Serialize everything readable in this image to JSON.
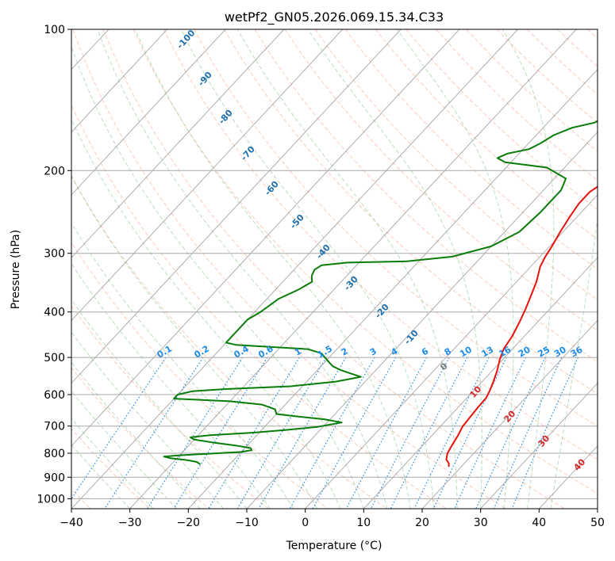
{
  "chart_data": {
    "type": "line",
    "title": "wetPf2_GN05.2026.069.15.34.C33",
    "xlabel": "Temperature (°C)",
    "ylabel": "Pressure (hPa)",
    "xlim": [
      -40,
      50
    ],
    "ylim": [
      1050,
      100
    ],
    "y_scale": "log",
    "grid": true,
    "x_ticks": [
      "−40",
      "−30",
      "−20",
      "−10",
      "0",
      "10",
      "20",
      "30",
      "40",
      "50"
    ],
    "x_tick_values": [
      -40,
      -30,
      -20,
      -10,
      0,
      10,
      20,
      30,
      40,
      50
    ],
    "y_ticks": [
      "100",
      "200",
      "300",
      "400",
      "500",
      "600",
      "700",
      "800",
      "900",
      "1000"
    ],
    "y_tick_values": [
      100,
      200,
      300,
      400,
      500,
      600,
      700,
      800,
      900,
      1000
    ],
    "series": [
      {
        "color": "#e8120c",
        "points": [
          [
            17.9,
            855
          ],
          [
            17.3,
            840
          ],
          [
            16.3,
            825
          ],
          [
            15.5,
            800
          ],
          [
            15.0,
            770
          ],
          [
            14.5,
            735
          ],
          [
            13.8,
            700
          ],
          [
            13.6,
            670
          ],
          [
            13.4,
            640
          ],
          [
            13.3,
            610
          ],
          [
            12.8,
            590
          ],
          [
            12.0,
            565
          ],
          [
            10.9,
            535
          ],
          [
            9.5,
            505
          ],
          [
            8.5,
            480
          ],
          [
            7.9,
            450
          ],
          [
            6.9,
            420
          ],
          [
            5.9,
            395
          ],
          [
            4.7,
            370
          ],
          [
            3.4,
            345
          ],
          [
            1.6,
            320
          ],
          [
            0.9,
            305
          ],
          [
            0.4,
            290
          ],
          [
            -0.5,
            270
          ],
          [
            -1.3,
            250
          ],
          [
            -1.8,
            235
          ],
          [
            -1.8,
            222
          ],
          [
            -0.9,
            212
          ],
          [
            1.3,
            203
          ],
          [
            4.5,
            192
          ],
          [
            7.3,
            180
          ],
          [
            9.2,
            169
          ],
          [
            10.5,
            160
          ],
          [
            12.6,
            148
          ],
          [
            14.3,
            136
          ],
          [
            15.6,
            127
          ],
          [
            16.9,
            119
          ],
          [
            17.9,
            113
          ],
          [
            18.3,
            108
          ],
          [
            18.7,
            104
          ],
          [
            19.0,
            100
          ]
        ]
      },
      {
        "color": "#0a7c0a",
        "points": [
          [
            -25,
            845
          ],
          [
            -26,
            835
          ],
          [
            -28,
            827
          ],
          [
            -31,
            820
          ],
          [
            -32.5,
            813
          ],
          [
            -30,
            808
          ],
          [
            -20,
            795
          ],
          [
            -18.5,
            788
          ],
          [
            -19,
            780
          ],
          [
            -22,
            770
          ],
          [
            -26,
            760
          ],
          [
            -30,
            748
          ],
          [
            -31,
            740
          ],
          [
            -28,
            732
          ],
          [
            -21,
            723
          ],
          [
            -16,
            714
          ],
          [
            -11,
            703
          ],
          [
            -7.5,
            688
          ],
          [
            -11,
            677
          ],
          [
            -16,
            668
          ],
          [
            -20,
            660
          ],
          [
            -21,
            645
          ],
          [
            -24,
            630
          ],
          [
            -30,
            620
          ],
          [
            -40,
            612
          ],
          [
            -40,
            600
          ],
          [
            -38,
            590
          ],
          [
            -33,
            584
          ],
          [
            -22,
            576
          ],
          [
            -15,
            563
          ],
          [
            -11.5,
            550
          ],
          [
            -14,
            540
          ],
          [
            -16,
            532
          ],
          [
            -18,
            522
          ],
          [
            -19.5,
            510
          ],
          [
            -22,
            490
          ],
          [
            -25,
            480
          ],
          [
            -38,
            470
          ],
          [
            -40,
            465
          ],
          [
            -40,
            450
          ],
          [
            -40,
            415
          ],
          [
            -39,
            400
          ],
          [
            -38,
            375
          ],
          [
            -36,
            358
          ],
          [
            -35,
            345
          ],
          [
            -36,
            335
          ],
          [
            -36.5,
            325
          ],
          [
            -36,
            318
          ],
          [
            -32,
            314
          ],
          [
            -22,
            312
          ],
          [
            -15,
            305
          ],
          [
            -10,
            290
          ],
          [
            -7.5,
            270
          ],
          [
            -7,
            245
          ],
          [
            -7,
            220
          ],
          [
            -8,
            208
          ],
          [
            -13,
            197
          ],
          [
            -21,
            192
          ],
          [
            -23,
            188
          ],
          [
            -22,
            184
          ],
          [
            -19,
            180
          ],
          [
            -18,
            175
          ],
          [
            -17,
            168
          ],
          [
            -15,
            162
          ],
          [
            -12,
            158
          ],
          [
            -11,
            152
          ],
          [
            -10,
            145
          ],
          [
            -10,
            138
          ],
          [
            -8,
            131
          ],
          [
            -6,
            126
          ],
          [
            -4,
            121
          ],
          [
            -2,
            115
          ],
          [
            0,
            109
          ],
          [
            2,
            104
          ],
          [
            3,
            100
          ]
        ]
      }
    ],
    "mixing_ratio_labels": [
      "0.1",
      "0.2",
      "0.4",
      "0.6",
      "1",
      "1.5",
      "2",
      "3",
      "4",
      "6",
      "8",
      "10",
      "13",
      "16",
      "20",
      "25",
      "30",
      "36"
    ],
    "dry_adiabat_labels": [
      "-100",
      "-90",
      "-80",
      "-70",
      "-60",
      "-50",
      "-40",
      "-30",
      "-20",
      "-10"
    ],
    "moist_adiabat_labels": [
      "0",
      "10",
      "20",
      "30",
      "40"
    ]
  }
}
